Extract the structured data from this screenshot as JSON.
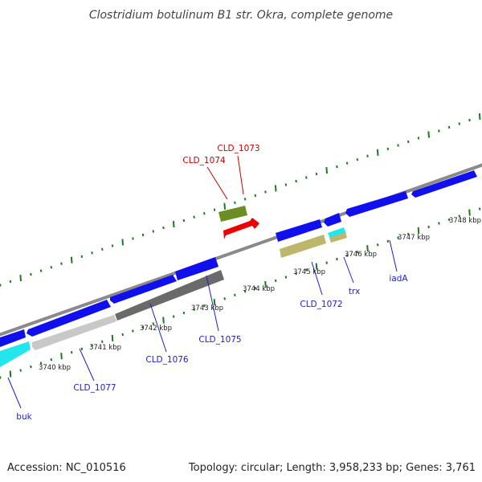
{
  "title": "Clostridium botulinum B1 str. Okra, complete genome",
  "footer": {
    "accession": "Accession: NC_010516",
    "summary": "Topology: circular; Length: 3,958,233 bp; Genes: 3,761"
  },
  "colors": {
    "backbone": "#8a8a8a",
    "tick": "#1e7a1e",
    "label_blue": "#1c1cd8",
    "label_red": "#cc0000",
    "cds_blue": "#1010ee",
    "cyan": "#22e6ee",
    "olive_green": "#6b8e23",
    "red": "#ee0000",
    "khaki": "#bdb76b",
    "gray_light": "#c8c8c8",
    "gray_dark": "#6a6a6a"
  },
  "ticks": [
    {
      "label": "3740 kbp"
    },
    {
      "label": "3741 kbp"
    },
    {
      "label": "3742 kbp"
    },
    {
      "label": "3743 kbp"
    },
    {
      "label": "3744 kbp"
    },
    {
      "label": "3745 kbp"
    },
    {
      "label": "3746 kbp"
    },
    {
      "label": "3747 kbp"
    },
    {
      "label": "3748 kbp"
    }
  ],
  "gene_labels": [
    {
      "name": "CLD_1073",
      "color": "red"
    },
    {
      "name": "CLD_1074",
      "color": "red"
    },
    {
      "name": "CLD_1072",
      "color": "blue"
    },
    {
      "name": "trx",
      "color": "blue"
    },
    {
      "name": "iadA",
      "color": "blue"
    },
    {
      "name": "CLD_1075",
      "color": "blue"
    },
    {
      "name": "CLD_1076",
      "color": "blue"
    },
    {
      "name": "CLD_1077",
      "color": "blue"
    },
    {
      "name": "buk",
      "color": "blue"
    }
  ]
}
